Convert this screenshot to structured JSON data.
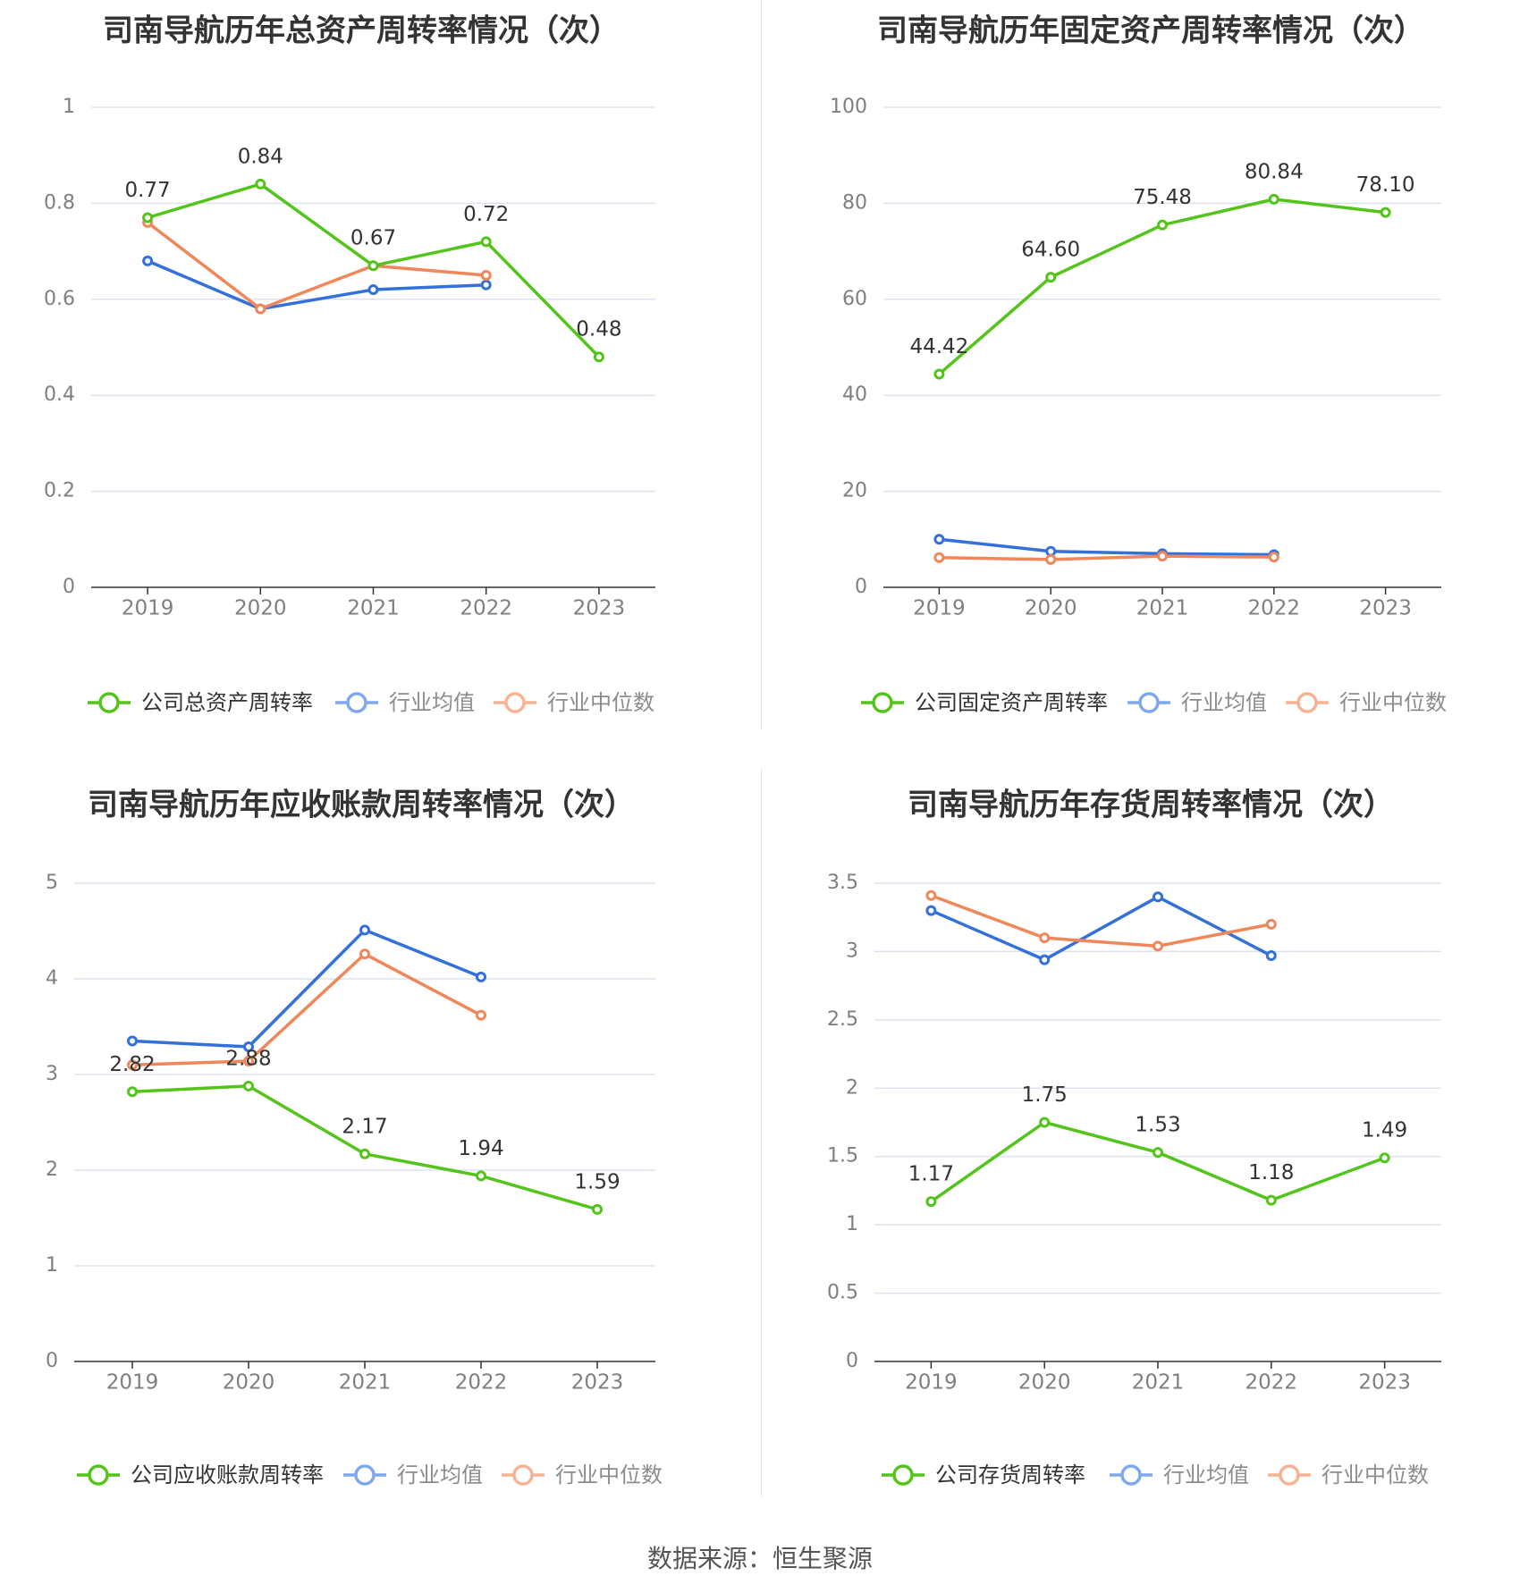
{
  "source": "数据来源：恒生聚源",
  "colors": {
    "company": "#52c41a",
    "mean": "#3370db",
    "median": "#f0875a",
    "grid": "#dde3ee",
    "axis": "#333333",
    "tick": "#7f7f7f"
  },
  "chart_data": [
    {
      "type": "line",
      "title": "司南导航历年总资产周转率情况（次）",
      "x": [
        "2019",
        "2020",
        "2021",
        "2022",
        "2023"
      ],
      "ylim": [
        0,
        1
      ],
      "yticks": [
        "0",
        "0.2",
        "0.4",
        "0.6",
        "0.8",
        "1"
      ],
      "series": [
        {
          "name": "公司总资产周转率",
          "values": [
            0.77,
            0.84,
            0.67,
            0.72,
            0.48
          ],
          "labels": [
            "0.77",
            "0.84",
            "0.67",
            "0.72",
            "0.48"
          ]
        },
        {
          "name": "行业均值",
          "values": [
            0.68,
            0.58,
            0.62,
            0.63,
            null
          ]
        },
        {
          "name": "行业中位数",
          "values": [
            0.76,
            0.58,
            0.67,
            0.65,
            null
          ]
        }
      ]
    },
    {
      "type": "line",
      "title": "司南导航历年固定资产周转率情况（次）",
      "x": [
        "2019",
        "2020",
        "2021",
        "2022",
        "2023"
      ],
      "ylim": [
        0,
        100
      ],
      "yticks": [
        "0",
        "20",
        "40",
        "60",
        "80",
        "100"
      ],
      "series": [
        {
          "name": "公司固定资产周转率",
          "values": [
            44.42,
            64.6,
            75.48,
            80.84,
            78.1
          ],
          "labels": [
            "44.42",
            "64.60",
            "75.48",
            "80.84",
            "78.10"
          ]
        },
        {
          "name": "行业均值",
          "values": [
            10.0,
            7.5,
            7.0,
            6.8,
            null
          ]
        },
        {
          "name": "行业中位数",
          "values": [
            6.2,
            5.8,
            6.5,
            6.3,
            null
          ]
        }
      ]
    },
    {
      "type": "line",
      "title": "司南导航历年应收账款周转率情况（次）",
      "x": [
        "2019",
        "2020",
        "2021",
        "2022",
        "2023"
      ],
      "ylim": [
        0,
        5
      ],
      "yticks": [
        "0",
        "1",
        "2",
        "3",
        "4",
        "5"
      ],
      "series": [
        {
          "name": "公司应收账款周转率",
          "values": [
            2.82,
            2.88,
            2.17,
            1.94,
            1.59
          ],
          "labels": [
            "2.82",
            "2.88",
            "2.17",
            "1.94",
            "1.59"
          ]
        },
        {
          "name": "行业均值",
          "values": [
            3.35,
            3.29,
            4.51,
            4.02,
            null
          ]
        },
        {
          "name": "行业中位数",
          "values": [
            3.1,
            3.14,
            4.26,
            3.62,
            null
          ]
        }
      ]
    },
    {
      "type": "line",
      "title": "司南导航历年存货周转率情况（次）",
      "x": [
        "2019",
        "2020",
        "2021",
        "2022",
        "2023"
      ],
      "ylim": [
        0,
        3.5
      ],
      "yticks": [
        "0",
        "0.5",
        "1",
        "1.5",
        "2",
        "2.5",
        "3",
        "3.5"
      ],
      "series": [
        {
          "name": "公司存货周转率",
          "values": [
            1.17,
            1.75,
            1.53,
            1.18,
            1.49
          ],
          "labels": [
            "1.17",
            "1.75",
            "1.53",
            "1.18",
            "1.49"
          ]
        },
        {
          "name": "行业均值",
          "values": [
            3.3,
            2.94,
            3.4,
            2.97,
            null
          ]
        },
        {
          "name": "行业中位数",
          "values": [
            3.41,
            3.1,
            3.04,
            3.2,
            null
          ]
        }
      ]
    }
  ]
}
